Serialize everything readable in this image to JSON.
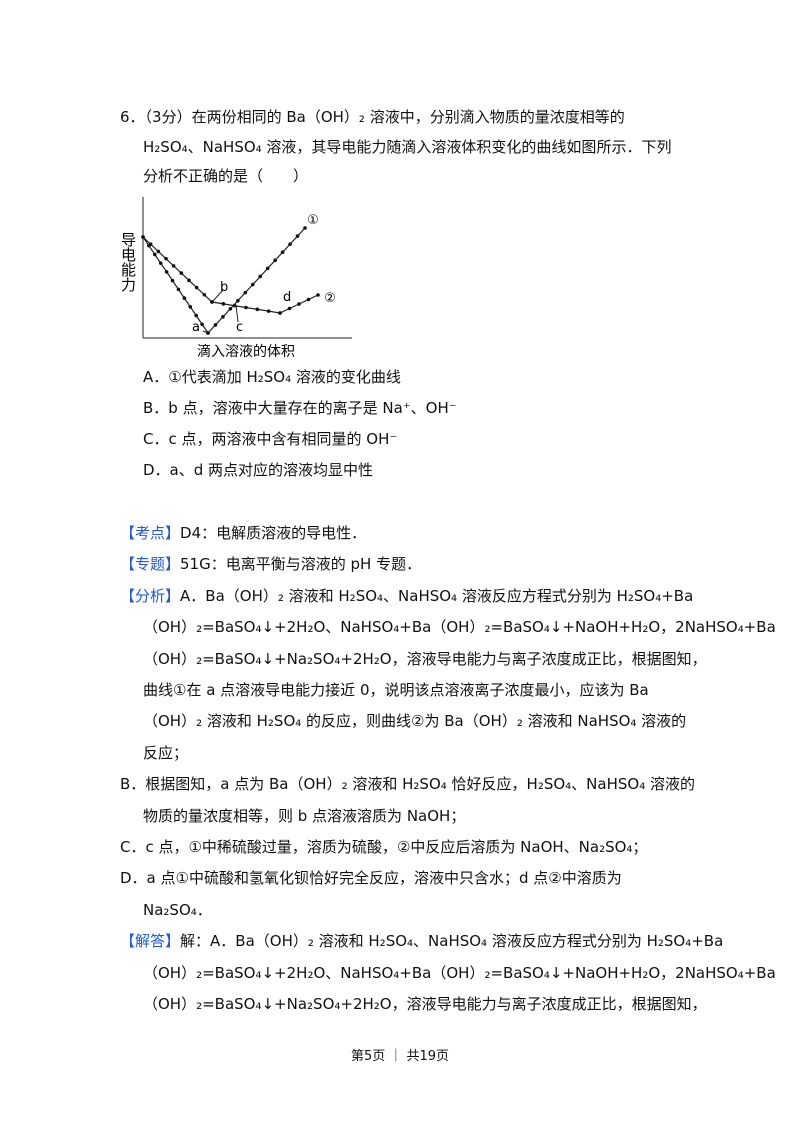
{
  "question": {
    "lines": [
      "6．（3分）在两份相同的 Ba（OH）₂ 溶液中，分别滴入物质的量浓度相等的",
      "H₂SO₄、NaHSO₄ 溶液，其导电能力随滴入溶液体积变化的曲线如图所示．下列",
      "分析不正确的是（　　）"
    ],
    "figure": {
      "y_label": "导电能力",
      "x_label": "滴入溶液的体积",
      "curve_1": "①",
      "curve_2": "②",
      "a": "a",
      "b": "b",
      "c": "c",
      "d": "d"
    },
    "options": [
      "A．①代表滴加 H₂SO₄ 溶液的变化曲线",
      "B．b 点，溶液中大量存在的离子是 Na⁺、OH⁻",
      "C．c 点，两溶液中含有相同量的 OH⁻",
      "D．a、d 两点对应的溶液均显中性"
    ]
  },
  "sections": [
    {
      "tag": "【考点】",
      "lines": [
        "D4：电解质溶液的导电性．"
      ]
    },
    {
      "tag": "【专题】",
      "lines": [
        "51G：电离平衡与溶液的 pH 专题．"
      ]
    },
    {
      "tag": "【分析】",
      "lines": [
        "A．Ba（OH）₂ 溶液和 H₂SO₄、NaHSO₄ 溶液反应方程式分别为 H₂SO₄+Ba",
        "（OH）₂=BaSO₄↓+2H₂O、NaHSO₄+Ba（OH）₂=BaSO₄↓+NaOH+H₂O，2NaHSO₄+Ba",
        "（OH）₂=BaSO₄↓+Na₂SO₄+2H₂O，溶液导电能力与离子浓度成正比，根据图知，",
        "曲线①在 a 点溶液导电能力接近 0，说明该点溶液离子浓度最小，应该为 Ba",
        "（OH）₂ 溶液和 H₂SO₄ 的反应，则曲线②为 Ba（OH）₂ 溶液和 NaHSO₄ 溶液的",
        "反应；"
      ]
    },
    {
      "lines": [
        "B．根据图知，a 点为 Ba（OH）₂ 溶液和 H₂SO₄ 恰好反应，H₂SO₄、NaHSO₄ 溶液的",
        "物质的量浓度相等，则 b 点溶液溶质为 NaOH；"
      ]
    },
    {
      "lines": [
        "C．c 点，①中稀硫酸过量，溶质为硫酸，②中反应后溶质为 NaOH、Na₂SO₄；"
      ]
    },
    {
      "lines": [
        "D．a 点①中硫酸和氢氧化钡恰好完全反应，溶液中只含水；d 点②中溶质为",
        "Na₂SO₄．"
      ]
    },
    {
      "tag": "【解答】",
      "lines": [
        "解：A．Ba（OH）₂ 溶液和 H₂SO₄、NaHSO₄ 溶液反应方程式分别为 H₂SO₄+Ba",
        "（OH）₂=BaSO₄↓+2H₂O、NaHSO₄+Ba（OH）₂=BaSO₄↓+NaOH+H₂O，2NaHSO₄+Ba",
        "（OH）₂=BaSO₄↓+Na₂SO₄+2H₂O，溶液导电能力与离子浓度成正比，根据图知，"
      ]
    }
  ],
  "footer": "第5页 ｜ 共19页"
}
